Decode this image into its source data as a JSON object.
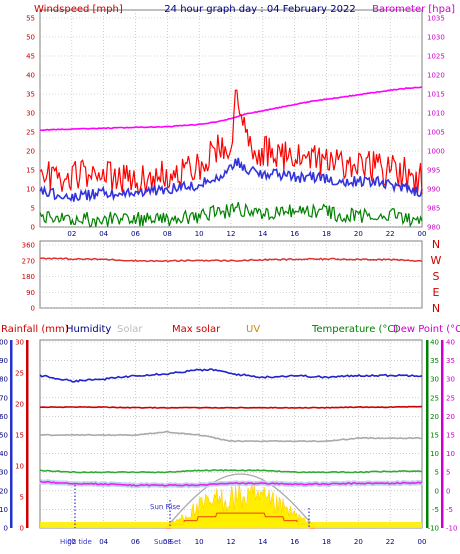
{
  "top_panel": {
    "title": "24 hour graph day : 04 February 2022",
    "left_label": "Windspeed [mph]",
    "right_label": "Barometer [hpa]",
    "left_ticks": [
      "55",
      "50",
      "45",
      "40",
      "35",
      "30",
      "25",
      "20",
      "15",
      "10",
      "5",
      "0"
    ],
    "right_ticks": [
      "1035",
      "1030",
      "1025",
      "1020",
      "1015",
      "1010",
      "1005",
      "1000",
      "995",
      "990",
      "985",
      "980"
    ]
  },
  "dir_panel": {
    "left_ticks": [
      "360",
      "270",
      "180",
      "90",
      "0"
    ],
    "right_ticks": [
      "N",
      "W",
      "S",
      "E",
      "N"
    ]
  },
  "bottom_panel": {
    "legend": {
      "rainfall": "Rainfall (mm)",
      "humidity": "Humidity",
      "solar": "Solar",
      "max_solar": "Max solar",
      "uv": "UV",
      "temperature": "Temperature (°C)",
      "dew_point": "Dew Point (°C)"
    },
    "humidity_ticks": [
      "100",
      "90",
      "80",
      "70",
      "60",
      "50",
      "40",
      "30",
      "20",
      "10",
      "0"
    ],
    "rain_ticks": [
      "30",
      "25",
      "20",
      "15",
      "10",
      "5",
      "0"
    ],
    "temp_ticks": [
      "40",
      "35",
      "30",
      "25",
      "20",
      "15",
      "10",
      "5",
      "0",
      "-5",
      "-10"
    ],
    "dew_ticks": [
      "40",
      "35",
      "30",
      "25",
      "20",
      "15",
      "10",
      "5",
      "0",
      "-5",
      "-10"
    ],
    "sun_rise_label": "Sun Rise",
    "high_tide_label": "High tide",
    "sun_set_label": "Sun Set"
  },
  "x_ticks": [
    "02",
    "04",
    "06",
    "08",
    "10",
    "12",
    "14",
    "16",
    "18",
    "20",
    "22",
    "00"
  ],
  "colors": {
    "wind_speed": "#ff0000",
    "wind_avg": "#3333dd",
    "wind_low": "#008000",
    "barometer": "#ff00ff",
    "direction": "#dd3333",
    "humidity": "#2222cc",
    "max_solar": "#cc0000",
    "solar": "#aaaaaa",
    "temperature": "#33aa33",
    "dew_point": "#ee22ee",
    "rain": "#ffee00",
    "title": "#000080",
    "grid": "#b0b0b0"
  },
  "chart_data": [
    {
      "type": "line",
      "title": "24 hour graph day : 04 February 2022",
      "ylabel": "Windspeed [mph]",
      "y2label": "Barometer [hpa]",
      "ylim": [
        0,
        55
      ],
      "y2lim": [
        980,
        1035
      ],
      "x_hours": [
        0,
        2,
        4,
        6,
        8,
        10,
        11,
        12,
        12.3,
        12.6,
        13,
        14,
        15,
        16,
        17,
        18,
        19,
        20,
        21,
        22,
        23,
        24
      ],
      "series": [
        {
          "name": "Windspeed",
          "values": [
            14,
            13,
            14,
            13,
            14,
            16,
            20,
            22,
            36,
            28,
            22,
            20,
            19,
            18,
            18,
            17,
            16,
            16,
            16,
            15,
            14,
            13
          ]
        },
        {
          "name": "Average",
          "values": [
            9,
            8,
            9,
            9,
            10,
            11,
            13,
            15,
            18,
            16,
            15,
            14,
            14,
            13,
            13,
            13,
            12,
            12,
            12,
            11,
            10,
            9
          ]
        },
        {
          "name": "Low",
          "values": [
            3,
            2,
            2,
            2,
            2,
            3,
            4,
            4,
            6,
            5,
            4,
            4,
            4,
            4,
            4,
            4,
            3,
            3,
            3,
            3,
            2,
            2
          ]
        },
        {
          "name": "Barometer",
          "values": [
            1005.5,
            1005.8,
            1006,
            1006.2,
            1006.4,
            1007,
            1007.6,
            1008.5,
            1009,
            1009.3,
            1009.8,
            1010.6,
            1011.4,
            1012.3,
            1013,
            1013.6,
            1014.2,
            1014.8,
            1015.4,
            1016,
            1016.5,
            1016.8
          ]
        }
      ]
    },
    {
      "type": "line",
      "ylim": [
        0,
        360
      ],
      "x_hours": [
        0,
        2,
        4,
        6,
        8,
        10,
        12,
        14,
        16,
        18,
        20,
        22,
        24
      ],
      "series": [
        {
          "name": "Wind direction",
          "values": [
            285,
            280,
            278,
            270,
            268,
            272,
            270,
            275,
            278,
            280,
            279,
            276,
            268
          ]
        }
      ]
    },
    {
      "type": "line",
      "ylim": [
        0,
        100
      ],
      "y_rain_lim": [
        0,
        30
      ],
      "y_temp_lim": [
        -10,
        40
      ],
      "x_hours": [
        0,
        2,
        4,
        6,
        8,
        10,
        11,
        12,
        13,
        14,
        16,
        18,
        20,
        22,
        24
      ],
      "series": [
        {
          "name": "Humidity",
          "values": [
            82,
            79,
            80,
            82,
            83,
            85,
            85,
            83,
            82,
            81,
            82,
            81,
            82,
            82,
            82
          ]
        },
        {
          "name": "Max solar",
          "values": [
            19.5,
            19.5,
            19.5,
            19.4,
            19.4,
            19.4,
            19.4,
            19.4,
            19.4,
            19.4,
            19.4,
            19.4,
            19.5,
            19.5,
            19.6
          ]
        },
        {
          "name": "Solar",
          "values": [
            15,
            15,
            15,
            15,
            15.5,
            15,
            14.5,
            14,
            14,
            14,
            14,
            14,
            14.5,
            14.5,
            14.5
          ]
        },
        {
          "name": "Temperature",
          "values": [
            5.5,
            5,
            5,
            5,
            5,
            5.5,
            5.5,
            5.5,
            5.5,
            5.5,
            5,
            5,
            5,
            5.2,
            5.3
          ]
        },
        {
          "name": "Dew Point",
          "values": [
            2.5,
            2,
            1.8,
            1.5,
            1.5,
            1.5,
            1.8,
            2,
            2,
            2,
            1.8,
            1.8,
            2,
            2,
            2.2
          ]
        }
      ],
      "solar_profile": {
        "start_hour": 7.9,
        "end_hour": 17.3,
        "peak_hour": 12.6,
        "peak_max": 29,
        "peak_actual": 23,
        "unit": "%"
      }
    }
  ]
}
